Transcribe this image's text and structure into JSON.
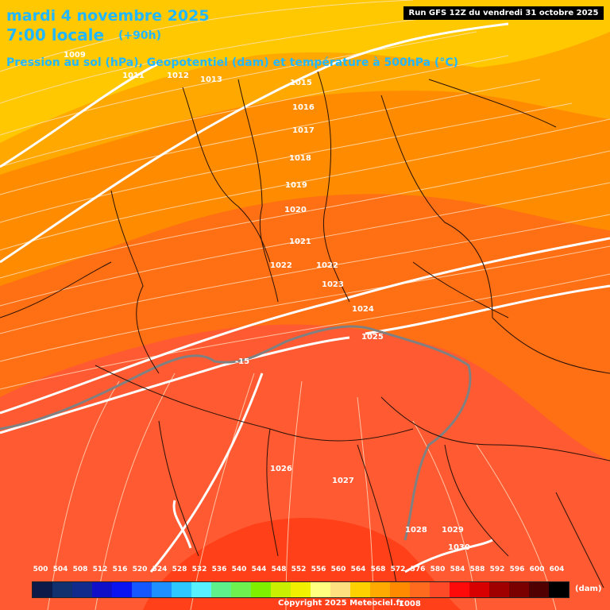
{
  "header": {
    "date_line": "mardi 4 novembre 2025",
    "time_line": "7:00 locale",
    "lead_time": "(+90h)",
    "subtitle": "Pression au sol (hPa), Geopotentiel (dam) et température à 500hPa (°C)",
    "run_info": "Run GFS 12Z du vendredi 31 octobre 2025"
  },
  "pressure_labels": [
    "1009",
    "1011",
    "1012",
    "1013",
    "1015",
    "1016",
    "1017",
    "1018",
    "1019",
    "1020",
    "1021",
    "1022",
    "1022",
    "1023",
    "1024",
    "1025",
    "1026",
    "1027",
    "1028",
    "1029",
    "1030",
    "1008"
  ],
  "temp_label": "-15",
  "legend": {
    "values": [
      "500",
      "504",
      "508",
      "512",
      "516",
      "520",
      "524",
      "528",
      "532",
      "536",
      "540",
      "544",
      "548",
      "552",
      "556",
      "560",
      "564",
      "568",
      "572",
      "576",
      "580",
      "584",
      "588",
      "592",
      "596",
      "600",
      "604"
    ],
    "colors": [
      "#0c1a4a",
      "#10306e",
      "#102b8c",
      "#1010c8",
      "#0a14f0",
      "#1456ff",
      "#1e90ff",
      "#2cc8ff",
      "#56f0ff",
      "#5ef08a",
      "#6ef050",
      "#7ef000",
      "#c8f000",
      "#f0f000",
      "#ffff80",
      "#ffe080",
      "#ffd000",
      "#ffaa00",
      "#ff8a00",
      "#ff6a1e",
      "#ff4a28",
      "#ff0a0a",
      "#d80000",
      "#a00000",
      "#7a0000",
      "#500000",
      "#000000"
    ],
    "unit": "(dam)"
  },
  "copyright": "Copyright 2025 Meteociel.fr"
}
